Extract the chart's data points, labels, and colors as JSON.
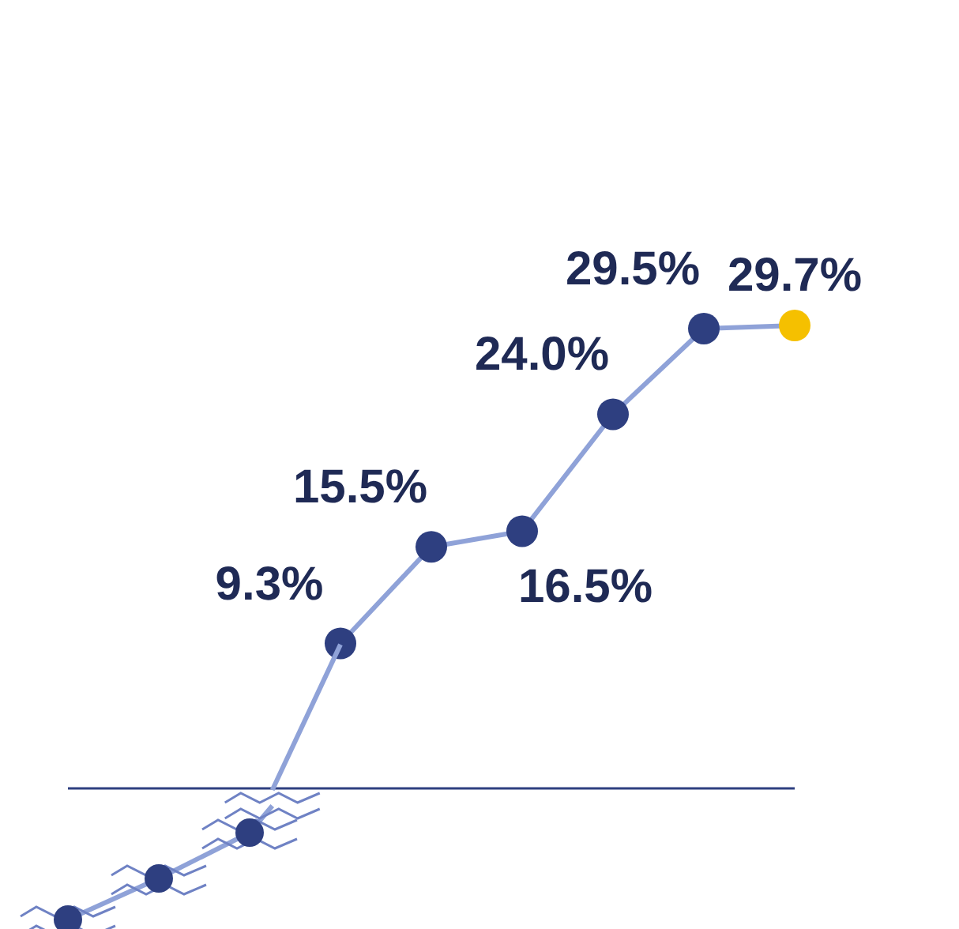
{
  "chart_data": {
    "type": "line",
    "categories": [
      null,
      null,
      null,
      null,
      null,
      null,
      null,
      null,
      null
    ],
    "series": [
      {
        "color": "#8fa2d8",
        "values": [
          null,
          null,
          null,
          9.3,
          15.5,
          16.5,
          24.0,
          29.5,
          29.7
        ],
        "value_labels": [
          null,
          null,
          null,
          "9.3%",
          "15.5%",
          "16.5%",
          "24.0%",
          "29.5%",
          "29.7%"
        ],
        "colors": [
          null,
          null,
          null,
          "#2e3f80",
          "#2e3f80",
          "#2e3f80",
          "#2e3f80",
          "#2e3f80",
          "#f5c000"
        ]
      }
    ],
    "marker": "circle",
    "grid": false,
    "legend": false
  }
}
